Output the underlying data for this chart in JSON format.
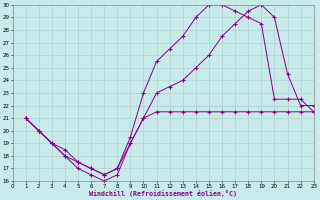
{
  "bg_color": "#c8eaea",
  "line_color": "#880088",
  "grid_color": "#aacccc",
  "xlabel": "Windchill (Refroidissement éolien,°C)",
  "xlim": [
    0,
    23
  ],
  "ylim": [
    16,
    30
  ],
  "xticks": [
    0,
    1,
    2,
    3,
    4,
    5,
    6,
    7,
    8,
    9,
    10,
    11,
    12,
    13,
    14,
    15,
    16,
    17,
    18,
    19,
    20,
    21,
    22,
    23
  ],
  "yticks": [
    16,
    17,
    18,
    19,
    20,
    21,
    22,
    23,
    24,
    25,
    26,
    27,
    28,
    29,
    30
  ],
  "line1_x": [
    1,
    2,
    3,
    4,
    5,
    6,
    7,
    8,
    9,
    10,
    11,
    12,
    13,
    14,
    15,
    16,
    17,
    18,
    19,
    20,
    21,
    22,
    23
  ],
  "line1_y": [
    21,
    20,
    19,
    18.5,
    17.5,
    17.0,
    16.5,
    17.0,
    19.5,
    23.0,
    25.5,
    26.5,
    27.5,
    29.0,
    30.0,
    30.0,
    29.5,
    29.0,
    28.5,
    22.5,
    22.5,
    22.5,
    21.5
  ],
  "line2_x": [
    1,
    2,
    3,
    4,
    5,
    6,
    7,
    8,
    9,
    10,
    11,
    12,
    13,
    14,
    15,
    16,
    17,
    18,
    19,
    20,
    21,
    22,
    23
  ],
  "line2_y": [
    21,
    20,
    19,
    18,
    17,
    16.5,
    16,
    16.5,
    19,
    21,
    23,
    23.5,
    24,
    25,
    26,
    27.5,
    28.5,
    29.5,
    30,
    29,
    24.5,
    22,
    22
  ],
  "line3_x": [
    1,
    2,
    3,
    4,
    5,
    6,
    7,
    8,
    9,
    10,
    11,
    12,
    13,
    14,
    15,
    16,
    17,
    18,
    19,
    20,
    21,
    22,
    23
  ],
  "line3_y": [
    21,
    20,
    19,
    18,
    17.5,
    17.0,
    16.5,
    17.0,
    19.0,
    21.0,
    21.5,
    21.5,
    21.5,
    21.5,
    21.5,
    21.5,
    21.5,
    21.5,
    21.5,
    21.5,
    21.5,
    21.5,
    21.5
  ]
}
